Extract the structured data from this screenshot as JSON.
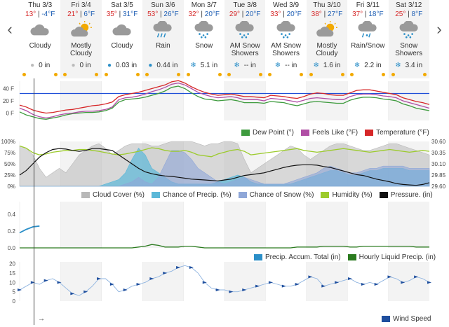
{
  "navigation": {
    "prev_label": "‹",
    "next_label": "›"
  },
  "days": [
    {
      "name": "Thu 3/3",
      "hi": "13°",
      "lo": "-4°F",
      "icon": "cloudy-icon",
      "condition": "Cloudy",
      "precip": "0 in",
      "precip_icon": "drop-outline-icon"
    },
    {
      "name": "Fri 3/4",
      "hi": "21°",
      "lo": "6°F",
      "icon": "partly-sunny-icon",
      "condition": "Mostly Cloudy",
      "precip": "0 in",
      "precip_icon": "drop-outline-icon"
    },
    {
      "name": "Sat 3/5",
      "hi": "35°",
      "lo": "31°F",
      "icon": "cloudy-icon",
      "condition": "Cloudy",
      "precip": "0.03 in",
      "precip_icon": "drop-icon"
    },
    {
      "name": "Sun 3/6",
      "hi": "53°",
      "lo": "26°F",
      "icon": "rain-icon",
      "condition": "Rain",
      "precip": "0.44 in",
      "precip_icon": "drop-icon"
    },
    {
      "name": "Mon 3/7",
      "hi": "32°",
      "lo": "20°F",
      "icon": "snow-icon",
      "condition": "Snow",
      "precip": "5.1 in",
      "precip_icon": "snowflake-icon"
    },
    {
      "name": "Tue 3/8",
      "hi": "29°",
      "lo": "20°F",
      "icon": "snow-icon",
      "condition": "AM Snow Showers",
      "precip": "-- in",
      "precip_icon": "snowflake-icon"
    },
    {
      "name": "Wed 3/9",
      "hi": "33°",
      "lo": "20°F",
      "icon": "snow-icon",
      "condition": "AM Snow Showers",
      "precip": "-- in",
      "precip_icon": "snowflake-icon"
    },
    {
      "name": "Thu 3/10",
      "hi": "38°",
      "lo": "27°F",
      "icon": "partly-sunny-icon",
      "condition": "Mostly Cloudy",
      "precip": "1.6 in",
      "precip_icon": "snowflake-icon"
    },
    {
      "name": "Fri 3/11",
      "hi": "37°",
      "lo": "18°F",
      "icon": "rain-snow-icon",
      "condition": "Rain/Snow",
      "precip": "2.2 in",
      "precip_icon": "snowflake-icon"
    },
    {
      "name": "Sat 3/12",
      "hi": "25°",
      "lo": "8°F",
      "icon": "snow-icon",
      "condition": "Snow Showers",
      "precip": "3.4 in",
      "precip_icon": "snowflake-icon"
    }
  ],
  "colors": {
    "temperature": "#d62728",
    "feels_like": "#b04ea5",
    "dew_point": "#3e9b3e",
    "cloud_cover": "#b8b8b8",
    "chance_precip": "#5bb8d8",
    "chance_snow": "#8fa7d8",
    "humidity": "#9ccb2c",
    "pressure": "#111111",
    "precip_accum": "#2b8fc8",
    "hourly_liquid": "#2a7a1e",
    "wind_speed": "#1f4f9e",
    "freezing_line": "#1f4fd8"
  },
  "chart_data": [
    {
      "type": "line",
      "title": "",
      "y_ticks": [
        "40 F",
        "20 F",
        "0 F"
      ],
      "ylim": [
        -12,
        52
      ],
      "x_label_days": 10,
      "reference_line": 32,
      "series": [
        {
          "name": "Dew Point (°)",
          "key": "dew_point",
          "values": [
            2,
            -3,
            -6,
            -9,
            -10,
            -8,
            -6,
            -3,
            -1,
            0,
            1,
            1,
            2,
            4,
            8,
            18,
            22,
            23,
            24,
            26,
            29,
            32,
            36,
            42,
            44,
            40,
            33,
            27,
            23,
            22,
            20,
            21,
            22,
            20,
            17,
            17,
            17,
            16,
            19,
            18,
            17,
            14,
            12,
            15,
            18,
            19,
            18,
            17,
            16,
            16,
            21,
            24,
            26,
            26,
            25,
            23,
            22,
            20,
            15,
            12,
            8,
            6,
            4
          ]
        },
        {
          "name": "Feels Like (°F)",
          "key": "feels_like",
          "values": [
            8,
            4,
            -2,
            -6,
            -8,
            -6,
            -3,
            -1,
            0,
            2,
            3,
            3,
            4,
            6,
            10,
            22,
            25,
            26,
            28,
            31,
            35,
            38,
            42,
            47,
            49,
            46,
            40,
            34,
            30,
            27,
            25,
            26,
            27,
            25,
            22,
            22,
            22,
            20,
            24,
            23,
            22,
            20,
            18,
            21,
            24,
            25,
            24,
            23,
            22,
            22,
            27,
            30,
            31,
            31,
            30,
            28,
            27,
            25,
            20,
            17,
            14,
            11,
            8
          ]
        },
        {
          "name": "Temperature (°F)",
          "key": "temperature",
          "values": [
            13,
            10,
            5,
            2,
            0,
            1,
            3,
            5,
            6,
            8,
            10,
            12,
            13,
            15,
            18,
            27,
            30,
            32,
            34,
            37,
            40,
            43,
            46,
            51,
            53,
            49,
            43,
            38,
            34,
            31,
            29,
            30,
            31,
            29,
            27,
            27,
            26,
            25,
            29,
            28,
            27,
            25,
            24,
            27,
            31,
            33,
            32,
            30,
            29,
            29,
            33,
            37,
            38,
            38,
            36,
            34,
            32,
            30,
            25,
            22,
            19,
            17,
            14
          ]
        }
      ]
    },
    {
      "type": "area",
      "title": "",
      "y_ticks": [
        "100%",
        "75%",
        "50%",
        "25%",
        "0%"
      ],
      "y2_ticks": [
        "30.60",
        "30.35",
        "30.10",
        "29.85",
        "29.60"
      ],
      "ylim": [
        0,
        100
      ],
      "y2lim": [
        29.6,
        30.6
      ],
      "series": [
        {
          "name": "Cloud Cover (%)",
          "key": "cloud_cover",
          "values": [
            90,
            85,
            70,
            40,
            20,
            30,
            40,
            30,
            50,
            70,
            80,
            90,
            95,
            85,
            70,
            80,
            90,
            95,
            95,
            95,
            90,
            90,
            95,
            100,
            100,
            100,
            100,
            95,
            90,
            95,
            95,
            100,
            100,
            95,
            60,
            30,
            40,
            50,
            60,
            70,
            80,
            90,
            85,
            70,
            60,
            70,
            80,
            90,
            95,
            95,
            90,
            85,
            80,
            80,
            85,
            90,
            95,
            95,
            90,
            85,
            80,
            75,
            70
          ]
        },
        {
          "name": "Chance of Precip. (%)",
          "key": "chance_precip",
          "values": [
            0,
            0,
            0,
            0,
            0,
            0,
            0,
            0,
            0,
            0,
            0,
            0,
            0,
            5,
            10,
            15,
            30,
            60,
            85,
            70,
            40,
            30,
            20,
            10,
            5,
            5,
            5,
            5,
            5,
            5,
            10,
            15,
            20,
            25,
            20,
            10,
            5,
            5,
            5,
            5,
            5,
            5,
            10,
            15,
            20,
            25,
            30,
            35,
            35,
            30,
            25,
            25,
            30,
            35,
            35,
            40,
            40,
            40,
            40,
            35,
            35,
            35,
            35
          ]
        },
        {
          "name": "Chance of Snow (%)",
          "key": "chance_snow",
          "values": [
            0,
            0,
            0,
            0,
            0,
            0,
            0,
            0,
            0,
            0,
            0,
            0,
            0,
            0,
            0,
            0,
            5,
            10,
            20,
            10,
            5,
            20,
            50,
            80,
            80,
            75,
            60,
            40,
            30,
            20,
            10,
            5,
            10,
            15,
            20,
            15,
            10,
            5,
            5,
            5,
            5,
            10,
            15,
            20,
            25,
            30,
            40,
            45,
            40,
            35,
            30,
            30,
            35,
            40,
            40,
            45,
            45,
            45,
            45,
            40,
            40,
            40,
            40
          ]
        },
        {
          "name": "Humidity (%)",
          "key": "humidity",
          "values": [
            90,
            85,
            75,
            70,
            72,
            76,
            78,
            80,
            80,
            82,
            82,
            80,
            78,
            75,
            72,
            70,
            72,
            75,
            78,
            82,
            86,
            84,
            80,
            78,
            78,
            80,
            76,
            70,
            68,
            66,
            72,
            76,
            80,
            82,
            78,
            70,
            72,
            74,
            76,
            78,
            80,
            82,
            84,
            80,
            78,
            76,
            78,
            80,
            82,
            84,
            82,
            80,
            78,
            76,
            78,
            80,
            82,
            80,
            78,
            76,
            78,
            80,
            78
          ]
        },
        {
          "name": "Pressure. (in)",
          "key": "pressure",
          "values": [
            29.85,
            29.95,
            30.1,
            30.25,
            30.35,
            30.42,
            30.44,
            30.43,
            30.4,
            30.38,
            30.4,
            30.44,
            30.44,
            30.42,
            30.4,
            30.3,
            30.2,
            30.1,
            30.0,
            29.92,
            29.88,
            29.85,
            29.83,
            29.82,
            29.8,
            29.78,
            29.76,
            29.75,
            29.74,
            29.73,
            29.72,
            29.74,
            29.76,
            29.8,
            29.84,
            29.86,
            29.88,
            29.9,
            29.94,
            29.98,
            30.02,
            30.05,
            30.07,
            30.08,
            30.08,
            30.07,
            30.04,
            30.02,
            29.98,
            29.94,
            29.9,
            29.86,
            29.84,
            29.8,
            29.76,
            29.73,
            29.7,
            29.66,
            29.64,
            29.63,
            29.62,
            29.64,
            29.68
          ]
        }
      ]
    },
    {
      "type": "line",
      "title": "",
      "y_ticks": [
        "0.4",
        "0.2",
        "0.0"
      ],
      "ylim": [
        0,
        0.45
      ],
      "series": [
        {
          "name": "Precip. Accum. Total (in)",
          "key": "precip_accum",
          "values": [
            0.18,
            0.22,
            0.25,
            0.26
          ]
        },
        {
          "name": "Hourly Liquid Precip. (in)",
          "key": "hourly_liquid",
          "values": [
            0,
            0,
            0,
            0,
            0,
            0,
            0,
            0,
            0,
            0,
            0,
            0,
            0,
            0,
            0,
            0,
            0,
            0,
            0.01,
            0.02,
            0.04,
            0.03,
            0.01,
            0.01,
            0.01,
            0.02,
            0.02,
            0.01,
            0,
            0,
            0,
            0,
            0,
            0,
            0,
            0,
            0,
            0,
            0,
            0,
            0,
            0,
            0.01,
            0.01,
            0.01,
            0.01,
            0.02,
            0.02,
            0.02,
            0.02,
            0.01,
            0.01,
            0.02,
            0.02,
            0.02,
            0.02,
            0.02,
            0.02,
            0.02,
            0.02,
            0.01,
            0.01,
            0.01
          ]
        }
      ]
    },
    {
      "type": "line",
      "title": "",
      "y_ticks": [
        "20",
        "15",
        "10",
        "5",
        "0"
      ],
      "ylim": [
        0,
        21
      ],
      "series": [
        {
          "name": "Wind Speed",
          "key": "wind_speed",
          "values": [
            6,
            8,
            10,
            9,
            11,
            12,
            10,
            7,
            4,
            3,
            5,
            8,
            12,
            12,
            9,
            5,
            6,
            8,
            9,
            10,
            12,
            13,
            15,
            16,
            18,
            19,
            18,
            15,
            10,
            7,
            6,
            6,
            5,
            5,
            6,
            7,
            8,
            9,
            10,
            9,
            8,
            8,
            9,
            11,
            13,
            12,
            8,
            9,
            10,
            11,
            12,
            10,
            9,
            10,
            9,
            11,
            13,
            12,
            10,
            11,
            13,
            12,
            10
          ]
        }
      ]
    }
  ],
  "legends": {
    "temp": [
      "Dew Point (°)",
      "Feels Like (°F)",
      "Temperature (°F)"
    ],
    "sky": [
      "Cloud Cover (%)",
      "Chance of Precip. (%)",
      "Chance of Snow (%)",
      "Humidity (%)",
      "Pressure. (in)"
    ],
    "precip": [
      "Precip. Accum. Total (in)",
      "Hourly Liquid Precip. (in)"
    ],
    "wind": [
      "Wind Speed"
    ]
  },
  "footer_arrow": "→"
}
